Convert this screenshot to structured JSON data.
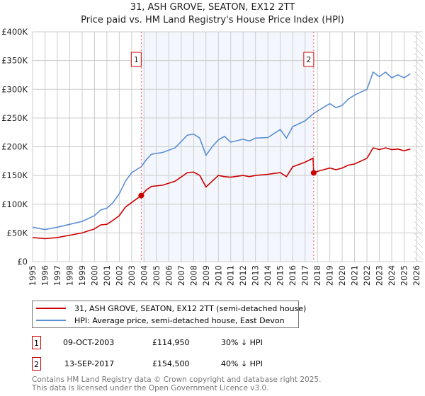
{
  "chart_data": {
    "type": "line",
    "title": "31, ASH GROVE, SEATON, EX12 2TT",
    "subtitle": "Price paid vs. HM Land Registry's House Price Index (HPI)",
    "xlim": [
      1995,
      2026
    ],
    "ylim": [
      0,
      400000
    ],
    "x_ticks": [
      "1995",
      "1996",
      "1997",
      "1998",
      "1999",
      "2000",
      "2001",
      "2002",
      "2003",
      "2004",
      "2005",
      "2006",
      "2007",
      "2008",
      "2009",
      "2010",
      "2011",
      "2012",
      "2013",
      "2014",
      "2015",
      "2016",
      "2017",
      "2018",
      "2019",
      "2020",
      "2021",
      "2022",
      "2023",
      "2024",
      "2025",
      "2026"
    ],
    "y_ticks": [
      {
        "v": 0,
        "label": "£0"
      },
      {
        "v": 50000,
        "label": "£50K"
      },
      {
        "v": 100000,
        "label": "£100K"
      },
      {
        "v": 150000,
        "label": "£150K"
      },
      {
        "v": 200000,
        "label": "£200K"
      },
      {
        "v": 250000,
        "label": "£250K"
      },
      {
        "v": 300000,
        "label": "£300K"
      },
      {
        "v": 350000,
        "label": "£350K"
      },
      {
        "v": 400000,
        "label": "£400K"
      }
    ],
    "grid": true,
    "shaded_range": [
      2003.77,
      2017.7
    ],
    "hatched_from": 2025.8,
    "series": [
      {
        "name": "31, ASH GROVE, SEATON, EX12 2TT (semi-detached house)",
        "color": "#cc0000",
        "x": [
          1995,
          1996,
          1997,
          1998,
          1999,
          2000,
          2000.5,
          2001,
          2001.5,
          2002,
          2002.5,
          2003,
          2003.77,
          2004.2,
          2004.6,
          2005.5,
          2006.5,
          2007.5,
          2008,
          2008.5,
          2009,
          2009.5,
          2010,
          2010.5,
          2011,
          2012,
          2012.5,
          2013,
          2014,
          2015,
          2015.5,
          2016,
          2017,
          2017.65,
          2017.7,
          2018,
          2019,
          2019.5,
          2020,
          2020.5,
          2021,
          2022,
          2022.5,
          2023,
          2023.5,
          2024,
          2024.5,
          2025,
          2025.5
        ],
        "y": [
          42000,
          40000,
          42000,
          46000,
          50000,
          57000,
          64000,
          65000,
          72000,
          80000,
          95000,
          103000,
          114950,
          125000,
          131000,
          133000,
          140000,
          155000,
          156000,
          150000,
          130000,
          140000,
          150000,
          148000,
          147000,
          150000,
          148000,
          150000,
          152000,
          155000,
          148000,
          165000,
          173000,
          180000,
          154500,
          157000,
          163000,
          160000,
          163000,
          168000,
          170000,
          180000,
          198000,
          195000,
          198000,
          195000,
          196000,
          193000,
          196000
        ]
      },
      {
        "name": "HPI: Average price, semi-detached house, East Devon",
        "color": "#5b8fd4",
        "x": [
          1995,
          1996,
          1997,
          1998,
          1999,
          2000,
          2000.5,
          2001,
          2001.5,
          2002,
          2002.5,
          2003,
          2003.77,
          2004.2,
          2004.6,
          2005.5,
          2006.5,
          2007.5,
          2008,
          2008.5,
          2009,
          2009.5,
          2010,
          2010.5,
          2011,
          2012,
          2012.5,
          2013,
          2014,
          2015,
          2015.5,
          2016,
          2017,
          2017.7,
          2018,
          2019,
          2019.5,
          2020,
          2020.5,
          2021,
          2022,
          2022.5,
          2023,
          2023.5,
          2024,
          2024.5,
          2025,
          2025.5
        ],
        "y": [
          60000,
          56000,
          60000,
          65000,
          70000,
          80000,
          90000,
          93000,
          103000,
          118000,
          140000,
          155000,
          165000,
          178000,
          187000,
          190000,
          198000,
          220000,
          222000,
          215000,
          185000,
          200000,
          212000,
          218000,
          208000,
          213000,
          210000,
          215000,
          216000,
          230000,
          215000,
          235000,
          245000,
          258000,
          262000,
          275000,
          268000,
          272000,
          283000,
          290000,
          300000,
          330000,
          322000,
          330000,
          320000,
          325000,
          320000,
          327000
        ]
      }
    ],
    "annotations": [
      {
        "label": "1",
        "x": 2003.77,
        "y": 114950
      },
      {
        "label": "2",
        "x": 2017.7,
        "y": 154500
      }
    ]
  },
  "legend": {
    "red_label": "31, ASH GROVE, SEATON, EX12 2TT (semi-detached house)",
    "blue_label": "HPI: Average price, semi-detached house, East Devon"
  },
  "transactions": [
    {
      "num": "1",
      "date": "09-OCT-2003",
      "price": "£114,950",
      "hpi": "30% ↓ HPI"
    },
    {
      "num": "2",
      "date": "13-SEP-2017",
      "price": "£154,500",
      "hpi": "40% ↓ HPI"
    }
  ],
  "footer": {
    "line1": "Contains HM Land Registry data © Crown copyright and database right 2025.",
    "line2": "This data is licensed under the Open Government Licence v3.0."
  }
}
